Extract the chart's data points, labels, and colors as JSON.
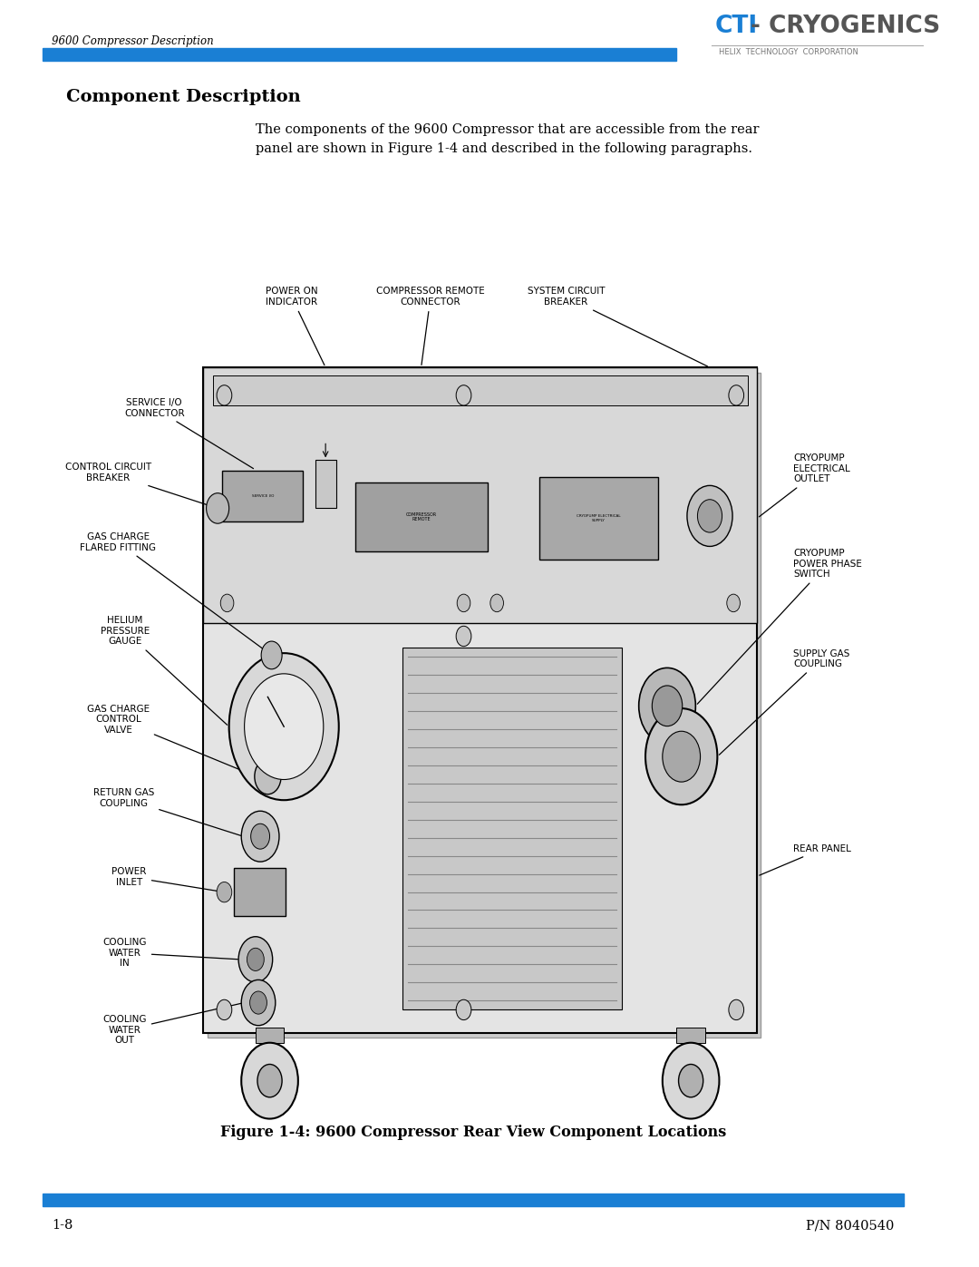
{
  "page_title": "9600 Compressor Description",
  "logo_cti": "CTI",
  "logo_dash": "-",
  "logo_cryogenics": "CRYOGENICS",
  "logo_subtitle": "HELIX  TECHNOLOGY  CORPORATION",
  "blue_color": "#1a7fd4",
  "header_line_color": "#1a7fd4",
  "section_title": "Component Description",
  "body_text_line1": "The components of the 9600 Compressor that are accessible from the rear",
  "body_text_line2": "panel are shown in Figure 1-4 and described in the following paragraphs.",
  "figure_caption": "Figure 1-4: 9600 Compressor Rear View Component Locations",
  "footer_left": "1-8",
  "footer_right": "P/N 8040540"
}
